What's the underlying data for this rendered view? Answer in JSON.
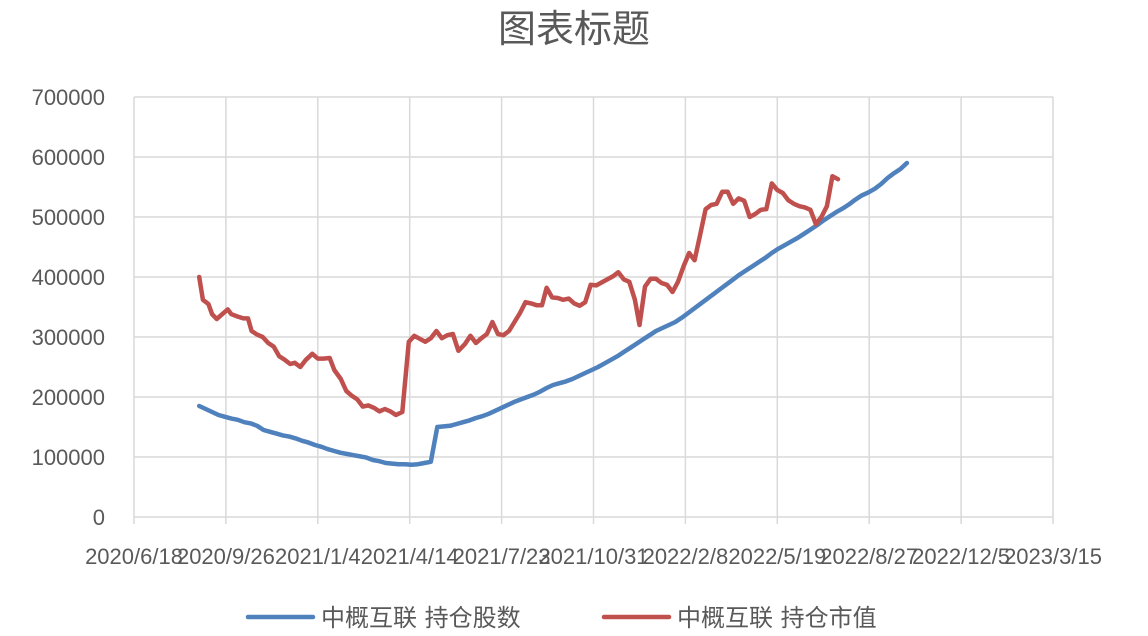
{
  "chart_data": {
    "type": "line",
    "title": "图表标题",
    "xlabel": "",
    "ylabel": "",
    "x_ticks": [
      "2020/6/18",
      "2020/9/26",
      "2021/1/4",
      "2021/4/14",
      "2021/7/23",
      "2021/10/31",
      "2022/2/8",
      "2022/5/19",
      "2022/8/27",
      "2022/12/5",
      "2023/3/15"
    ],
    "x_range": [
      "2020/6/18",
      "2023/3/15"
    ],
    "y_ticks": [
      "0",
      "100000",
      "200000",
      "300000",
      "400000",
      "500000",
      "600000",
      "700000"
    ],
    "ylim": [
      0,
      700000
    ],
    "grid": true,
    "legend_position": "bottom",
    "series": [
      {
        "name": "中概互联 持仓股数",
        "color": "#4f81bd",
        "points": [
          [
            "2020-08-28",
            185000
          ],
          [
            "2020-09-04",
            180000
          ],
          [
            "2020-09-11",
            175000
          ],
          [
            "2020-09-18",
            170000
          ],
          [
            "2020-09-25",
            167000
          ],
          [
            "2020-10-02",
            164000
          ],
          [
            "2020-10-09",
            162000
          ],
          [
            "2020-10-16",
            158000
          ],
          [
            "2020-10-23",
            156000
          ],
          [
            "2020-10-30",
            152000
          ],
          [
            "2020-11-06",
            145000
          ],
          [
            "2020-11-13",
            142000
          ],
          [
            "2020-11-20",
            139000
          ],
          [
            "2020-11-27",
            136000
          ],
          [
            "2020-12-04",
            134000
          ],
          [
            "2020-12-11",
            131000
          ],
          [
            "2020-12-18",
            127000
          ],
          [
            "2020-12-25",
            124000
          ],
          [
            "2021-01-01",
            120000
          ],
          [
            "2021-01-08",
            117000
          ],
          [
            "2021-01-15",
            113000
          ],
          [
            "2021-01-22",
            110000
          ],
          [
            "2021-01-29",
            107000
          ],
          [
            "2021-02-05",
            105000
          ],
          [
            "2021-02-12",
            103000
          ],
          [
            "2021-02-19",
            101000
          ],
          [
            "2021-02-26",
            99000
          ],
          [
            "2021-03-05",
            95000
          ],
          [
            "2021-03-12",
            93000
          ],
          [
            "2021-03-19",
            90000
          ],
          [
            "2021-03-26",
            89000
          ],
          [
            "2021-04-02",
            88000
          ],
          [
            "2021-04-09",
            88000
          ],
          [
            "2021-04-16",
            87000
          ],
          [
            "2021-04-23",
            88000
          ],
          [
            "2021-04-30",
            90000
          ],
          [
            "2021-05-07",
            92000
          ],
          [
            "2021-05-14",
            150000
          ],
          [
            "2021-05-21",
            151000
          ],
          [
            "2021-05-28",
            152000
          ],
          [
            "2021-06-04",
            155000
          ],
          [
            "2021-06-11",
            158000
          ],
          [
            "2021-06-18",
            161000
          ],
          [
            "2021-06-25",
            165000
          ],
          [
            "2021-07-02",
            168000
          ],
          [
            "2021-07-09",
            172000
          ],
          [
            "2021-07-16",
            177000
          ],
          [
            "2021-07-23",
            182000
          ],
          [
            "2021-07-30",
            187000
          ],
          [
            "2021-08-06",
            192000
          ],
          [
            "2021-08-13",
            196000
          ],
          [
            "2021-08-20",
            200000
          ],
          [
            "2021-08-27",
            204000
          ],
          [
            "2021-09-03",
            209000
          ],
          [
            "2021-09-10",
            215000
          ],
          [
            "2021-09-17",
            220000
          ],
          [
            "2021-09-24",
            223000
          ],
          [
            "2021-10-01",
            226000
          ],
          [
            "2021-10-08",
            230000
          ],
          [
            "2021-10-15",
            235000
          ],
          [
            "2021-10-22",
            240000
          ],
          [
            "2021-10-29",
            245000
          ],
          [
            "2021-11-05",
            250000
          ],
          [
            "2021-11-12",
            256000
          ],
          [
            "2021-11-19",
            262000
          ],
          [
            "2021-11-26",
            268000
          ],
          [
            "2021-12-03",
            275000
          ],
          [
            "2021-12-10",
            282000
          ],
          [
            "2021-12-17",
            289000
          ],
          [
            "2021-12-24",
            296000
          ],
          [
            "2021-12-31",
            303000
          ],
          [
            "2022-01-07",
            310000
          ],
          [
            "2022-01-14",
            315000
          ],
          [
            "2022-01-21",
            320000
          ],
          [
            "2022-01-28",
            325000
          ],
          [
            "2022-02-04",
            332000
          ],
          [
            "2022-02-11",
            340000
          ],
          [
            "2022-02-18",
            348000
          ],
          [
            "2022-02-25",
            356000
          ],
          [
            "2022-03-04",
            364000
          ],
          [
            "2022-03-11",
            372000
          ],
          [
            "2022-03-18",
            380000
          ],
          [
            "2022-03-25",
            388000
          ],
          [
            "2022-04-01",
            396000
          ],
          [
            "2022-04-08",
            404000
          ],
          [
            "2022-04-15",
            411000
          ],
          [
            "2022-04-22",
            418000
          ],
          [
            "2022-04-29",
            425000
          ],
          [
            "2022-05-06",
            432000
          ],
          [
            "2022-05-13",
            440000
          ],
          [
            "2022-05-20",
            447000
          ],
          [
            "2022-05-27",
            453000
          ],
          [
            "2022-06-03",
            459000
          ],
          [
            "2022-06-10",
            465000
          ],
          [
            "2022-06-17",
            472000
          ],
          [
            "2022-06-24",
            479000
          ],
          [
            "2022-07-01",
            486000
          ],
          [
            "2022-07-08",
            494000
          ],
          [
            "2022-07-15",
            501000
          ],
          [
            "2022-07-22",
            508000
          ],
          [
            "2022-07-29",
            514000
          ],
          [
            "2022-08-05",
            521000
          ],
          [
            "2022-08-12",
            529000
          ],
          [
            "2022-08-19",
            536000
          ],
          [
            "2022-08-26",
            541000
          ],
          [
            "2022-09-02",
            547000
          ],
          [
            "2022-09-09",
            555000
          ],
          [
            "2022-09-16",
            565000
          ],
          [
            "2022-09-23",
            573000
          ],
          [
            "2022-09-30",
            580000
          ],
          [
            "2022-10-07",
            590000
          ]
        ]
      },
      {
        "name": "中概互联 持仓市值",
        "color": "#c0504d",
        "points": [
          [
            "2020-08-28",
            400000
          ],
          [
            "2020-09-01",
            362000
          ],
          [
            "2020-09-07",
            355000
          ],
          [
            "2020-09-11",
            338000
          ],
          [
            "2020-09-16",
            330000
          ],
          [
            "2020-09-22",
            338000
          ],
          [
            "2020-09-28",
            346000
          ],
          [
            "2020-10-02",
            338000
          ],
          [
            "2020-10-09",
            334000
          ],
          [
            "2020-10-15",
            331000
          ],
          [
            "2020-10-20",
            331000
          ],
          [
            "2020-10-24",
            310000
          ],
          [
            "2020-10-30",
            304000
          ],
          [
            "2020-11-05",
            300000
          ],
          [
            "2020-11-11",
            290000
          ],
          [
            "2020-11-17",
            284000
          ],
          [
            "2020-11-23",
            268000
          ],
          [
            "2020-11-29",
            262000
          ],
          [
            "2020-12-05",
            255000
          ],
          [
            "2020-12-10",
            257000
          ],
          [
            "2020-12-16",
            250000
          ],
          [
            "2020-12-22",
            262000
          ],
          [
            "2020-12-29",
            272000
          ],
          [
            "2021-01-04",
            264000
          ],
          [
            "2021-01-10",
            264000
          ],
          [
            "2021-01-17",
            265000
          ],
          [
            "2021-01-22",
            245000
          ],
          [
            "2021-01-29",
            230000
          ],
          [
            "2021-02-04",
            210000
          ],
          [
            "2021-02-10",
            202000
          ],
          [
            "2021-02-16",
            196000
          ],
          [
            "2021-02-22",
            184000
          ],
          [
            "2021-02-28",
            186000
          ],
          [
            "2021-03-06",
            182000
          ],
          [
            "2021-03-12",
            176000
          ],
          [
            "2021-03-18",
            180000
          ],
          [
            "2021-03-24",
            176000
          ],
          [
            "2021-03-30",
            170000
          ],
          [
            "2021-04-06",
            175000
          ],
          [
            "2021-04-13",
            292000
          ],
          [
            "2021-04-19",
            302000
          ],
          [
            "2021-04-25",
            297000
          ],
          [
            "2021-05-01",
            292000
          ],
          [
            "2021-05-07",
            298000
          ],
          [
            "2021-05-13",
            310000
          ],
          [
            "2021-05-19",
            298000
          ],
          [
            "2021-05-25",
            303000
          ],
          [
            "2021-05-31",
            305000
          ],
          [
            "2021-06-06",
            277000
          ],
          [
            "2021-06-13",
            288000
          ],
          [
            "2021-06-19",
            302000
          ],
          [
            "2021-06-25",
            290000
          ],
          [
            "2021-07-01",
            298000
          ],
          [
            "2021-07-07",
            305000
          ],
          [
            "2021-07-13",
            325000
          ],
          [
            "2021-07-19",
            305000
          ],
          [
            "2021-07-25",
            303000
          ],
          [
            "2021-07-31",
            310000
          ],
          [
            "2021-08-06",
            325000
          ],
          [
            "2021-08-12",
            340000
          ],
          [
            "2021-08-18",
            358000
          ],
          [
            "2021-08-24",
            356000
          ],
          [
            "2021-08-30",
            353000
          ],
          [
            "2021-09-05",
            353000
          ],
          [
            "2021-09-10",
            382000
          ],
          [
            "2021-09-16",
            366000
          ],
          [
            "2021-09-22",
            365000
          ],
          [
            "2021-09-28",
            362000
          ],
          [
            "2021-10-04",
            364000
          ],
          [
            "2021-10-10",
            356000
          ],
          [
            "2021-10-16",
            352000
          ],
          [
            "2021-10-22",
            358000
          ],
          [
            "2021-10-28",
            387000
          ],
          [
            "2021-11-03",
            386000
          ],
          [
            "2021-11-09",
            391000
          ],
          [
            "2021-11-15",
            396000
          ],
          [
            "2021-11-21",
            401000
          ],
          [
            "2021-11-27",
            408000
          ],
          [
            "2021-12-03",
            396000
          ],
          [
            "2021-12-09",
            392000
          ],
          [
            "2021-12-15",
            362000
          ],
          [
            "2021-12-20",
            320000
          ],
          [
            "2021-12-26",
            384000
          ],
          [
            "2022-01-01",
            397000
          ],
          [
            "2022-01-07",
            397000
          ],
          [
            "2022-01-13",
            390000
          ],
          [
            "2022-01-19",
            387000
          ],
          [
            "2022-01-25",
            375000
          ],
          [
            "2022-01-31",
            392000
          ],
          [
            "2022-02-06",
            418000
          ],
          [
            "2022-02-12",
            440000
          ],
          [
            "2022-02-18",
            428000
          ],
          [
            "2022-02-24",
            470000
          ],
          [
            "2022-03-02",
            513000
          ],
          [
            "2022-03-08",
            520000
          ],
          [
            "2022-03-14",
            522000
          ],
          [
            "2022-03-20",
            542000
          ],
          [
            "2022-03-26",
            542000
          ],
          [
            "2022-04-01",
            522000
          ],
          [
            "2022-04-07",
            531000
          ],
          [
            "2022-04-13",
            527000
          ],
          [
            "2022-04-19",
            500000
          ],
          [
            "2022-04-25",
            505000
          ],
          [
            "2022-05-01",
            512000
          ],
          [
            "2022-05-07",
            513000
          ],
          [
            "2022-05-13",
            556000
          ],
          [
            "2022-05-19",
            545000
          ],
          [
            "2022-05-25",
            540000
          ],
          [
            "2022-05-31",
            528000
          ],
          [
            "2022-06-06",
            522000
          ],
          [
            "2022-06-12",
            518000
          ],
          [
            "2022-06-18",
            516000
          ],
          [
            "2022-06-24",
            512000
          ],
          [
            "2022-06-30",
            488000
          ],
          [
            "2022-07-06",
            500000
          ],
          [
            "2022-07-12",
            518000
          ],
          [
            "2022-07-18",
            568000
          ],
          [
            "2022-07-24",
            563000
          ]
        ]
      }
    ]
  }
}
